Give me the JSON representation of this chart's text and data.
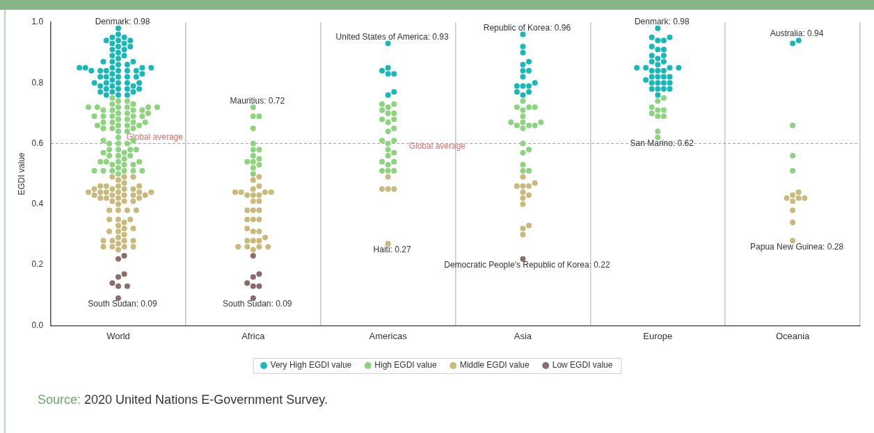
{
  "chart_data": {
    "type": "scatter",
    "ylabel": "EGDI value",
    "categories": [
      "World",
      "Africa",
      "Americas",
      "Asia",
      "Europe",
      "Oceania"
    ],
    "ylim": [
      0,
      1
    ],
    "yticks": [
      {
        "value": 0,
        "label": "0.0"
      },
      0.2,
      0.4,
      0.6,
      0.8,
      {
        "value": 1,
        "label": "1.0"
      }
    ],
    "grid": "x",
    "legend": "bottom",
    "marker": "circle",
    "series": [
      {
        "name": "Very High EGDI value",
        "color": "#17b8b8",
        "x": [
          "Americas",
          "Americas",
          "Americas",
          "Americas",
          "Americas",
          "Americas",
          "Americas",
          "Asia",
          "Asia",
          "Asia",
          "Asia",
          "Asia",
          "Asia",
          "Asia",
          "Asia",
          "Asia",
          "Asia",
          "Asia",
          "Asia",
          "Asia",
          "Asia",
          "Asia",
          "Europe",
          "Europe",
          "Europe",
          "Europe",
          "Europe",
          "Europe",
          "Europe",
          "Europe",
          "Europe",
          "Europe",
          "Europe",
          "Europe",
          "Europe",
          "Europe",
          "Europe",
          "Europe",
          "Europe",
          "Europe",
          "Europe",
          "Europe",
          "Europe",
          "Europe",
          "Europe",
          "Europe",
          "Europe",
          "Europe",
          "Europe",
          "Europe",
          "Europe",
          "Europe",
          "Europe",
          "Europe",
          "Europe",
          "Europe",
          "Europe",
          "Oceania",
          "Oceania",
          "World",
          "World",
          "World",
          "World",
          "World",
          "World",
          "World",
          "World",
          "World",
          "World",
          "World",
          "World",
          "World",
          "World",
          "World",
          "World",
          "World",
          "World",
          "World",
          "World",
          "World",
          "World",
          "World",
          "World",
          "World",
          "World",
          "World",
          "World",
          "World",
          "World",
          "World",
          "World",
          "World",
          "World",
          "World",
          "World",
          "World",
          "World",
          "World",
          "World",
          "World",
          "World",
          "World",
          "World",
          "World",
          "World",
          "World",
          "World",
          "World",
          "World",
          "World",
          "World",
          "World",
          "World",
          "World",
          "World",
          "World",
          "World",
          "World"
        ],
        "values": [
          0.93,
          0.85,
          0.84,
          0.83,
          0.83,
          0.77,
          0.76,
          0.96,
          0.92,
          0.9,
          0.87,
          0.86,
          0.84,
          0.84,
          0.82,
          0.8,
          0.79,
          0.79,
          0.79,
          0.77,
          0.77,
          0.76,
          0.98,
          0.95,
          0.95,
          0.94,
          0.94,
          0.92,
          0.91,
          0.91,
          0.89,
          0.89,
          0.88,
          0.87,
          0.87,
          0.86,
          0.85,
          0.85,
          0.85,
          0.85,
          0.84,
          0.84,
          0.84,
          0.82,
          0.82,
          0.82,
          0.82,
          0.81,
          0.8,
          0.8,
          0.8,
          0.8,
          0.78,
          0.78,
          0.78,
          0.78,
          0.76,
          0.94,
          0.93,
          0.93,
          0.85,
          0.84,
          0.83,
          0.83,
          0.77,
          0.76,
          0.96,
          0.92,
          0.9,
          0.87,
          0.86,
          0.84,
          0.84,
          0.82,
          0.8,
          0.79,
          0.79,
          0.79,
          0.77,
          0.77,
          0.76,
          0.98,
          0.95,
          0.95,
          0.94,
          0.94,
          0.92,
          0.91,
          0.91,
          0.89,
          0.89,
          0.88,
          0.87,
          0.87,
          0.86,
          0.85,
          0.85,
          0.85,
          0.85,
          0.84,
          0.84,
          0.84,
          0.82,
          0.82,
          0.82,
          0.82,
          0.81,
          0.8,
          0.8,
          0.8,
          0.8,
          0.78,
          0.78,
          0.78,
          0.78,
          0.76,
          0.94,
          0.93
        ]
      },
      {
        "name": "High EGDI value",
        "color": "#8cd47e",
        "x": [
          "Africa",
          "Africa",
          "Africa",
          "Africa",
          "Africa",
          "Africa",
          "Africa",
          "Africa",
          "Africa",
          "Africa",
          "Africa",
          "Africa",
          "Africa",
          "Africa",
          "Americas",
          "Americas",
          "Americas",
          "Americas",
          "Americas",
          "Americas",
          "Americas",
          "Americas",
          "Americas",
          "Americas",
          "Americas",
          "Americas",
          "Americas",
          "Americas",
          "Americas",
          "Americas",
          "Americas",
          "Americas",
          "Americas",
          "Americas",
          "Americas",
          "Americas",
          "Americas",
          "Asia",
          "Asia",
          "Asia",
          "Asia",
          "Asia",
          "Asia",
          "Asia",
          "Asia",
          "Asia",
          "Asia",
          "Asia",
          "Asia",
          "Asia",
          "Asia",
          "Asia",
          "Asia",
          "Asia",
          "Asia",
          "Asia",
          "Europe",
          "Europe",
          "Europe",
          "Europe",
          "Europe",
          "Europe",
          "Europe",
          "Europe",
          "Europe",
          "Europe",
          "Oceania",
          "Oceania",
          "Oceania",
          "World",
          "World",
          "World",
          "World",
          "World",
          "World",
          "World",
          "World",
          "World",
          "World",
          "World",
          "World",
          "World",
          "World",
          "World",
          "World",
          "World",
          "World",
          "World",
          "World",
          "World",
          "World",
          "World",
          "World",
          "World",
          "World",
          "World",
          "World",
          "World",
          "World",
          "World",
          "World",
          "World",
          "World",
          "World",
          "World",
          "World",
          "World",
          "World",
          "World",
          "World",
          "World",
          "World",
          "World",
          "World",
          "World",
          "World",
          "World",
          "World",
          "World",
          "World",
          "World",
          "World",
          "World",
          "World",
          "World",
          "World",
          "World",
          "World",
          "World",
          "World",
          "World",
          "World",
          "World",
          "World",
          "World",
          "World",
          "World",
          "World"
        ],
        "values": [
          0.72,
          0.69,
          0.69,
          0.65,
          0.6,
          0.58,
          0.58,
          0.56,
          0.55,
          0.54,
          0.54,
          0.53,
          0.52,
          0.5,
          0.73,
          0.73,
          0.72,
          0.71,
          0.7,
          0.7,
          0.68,
          0.68,
          0.67,
          0.65,
          0.64,
          0.61,
          0.61,
          0.6,
          0.58,
          0.57,
          0.56,
          0.54,
          0.54,
          0.53,
          0.51,
          0.51,
          0.51,
          0.74,
          0.72,
          0.72,
          0.72,
          0.71,
          0.69,
          0.67,
          0.67,
          0.67,
          0.66,
          0.66,
          0.66,
          0.65,
          0.6,
          0.58,
          0.57,
          0.53,
          0.51,
          0.51,
          0.75,
          0.74,
          0.72,
          0.71,
          0.71,
          0.7,
          0.69,
          0.69,
          0.64,
          0.62,
          0.66,
          0.56,
          0.51,
          0.72,
          0.69,
          0.69,
          0.65,
          0.6,
          0.58,
          0.58,
          0.56,
          0.55,
          0.54,
          0.54,
          0.53,
          0.52,
          0.5,
          0.73,
          0.73,
          0.72,
          0.71,
          0.7,
          0.7,
          0.68,
          0.68,
          0.67,
          0.65,
          0.64,
          0.61,
          0.61,
          0.6,
          0.58,
          0.57,
          0.56,
          0.54,
          0.54,
          0.53,
          0.51,
          0.51,
          0.51,
          0.74,
          0.72,
          0.72,
          0.72,
          0.71,
          0.69,
          0.67,
          0.67,
          0.67,
          0.66,
          0.66,
          0.66,
          0.65,
          0.6,
          0.58,
          0.57,
          0.53,
          0.51,
          0.51,
          0.75,
          0.74,
          0.72,
          0.71,
          0.71,
          0.7,
          0.69,
          0.69,
          0.64,
          0.62,
          0.66,
          0.56,
          0.51
        ]
      },
      {
        "name": "Middle EGDI value",
        "color": "#c9ba7c",
        "x": [
          "Africa",
          "Africa",
          "Africa",
          "Africa",
          "Africa",
          "Africa",
          "Africa",
          "Africa",
          "Africa",
          "Africa",
          "Africa",
          "Africa",
          "Africa",
          "Africa",
          "Africa",
          "Africa",
          "Africa",
          "Africa",
          "Africa",
          "Africa",
          "Africa",
          "Africa",
          "Africa",
          "Africa",
          "Africa",
          "Africa",
          "Africa",
          "Africa",
          "Africa",
          "Africa",
          "Africa",
          "Americas",
          "Americas",
          "Americas",
          "Americas",
          "Americas",
          "Asia",
          "Asia",
          "Asia",
          "Asia",
          "Asia",
          "Asia",
          "Asia",
          "Asia",
          "Asia",
          "Asia",
          "Asia",
          "Asia",
          "Oceania",
          "Oceania",
          "Oceania",
          "Oceania",
          "Oceania",
          "Oceania",
          "Oceania",
          "Oceania",
          "Oceania",
          "World",
          "World",
          "World",
          "World",
          "World",
          "World",
          "World",
          "World",
          "World",
          "World",
          "World",
          "World",
          "World",
          "World",
          "World",
          "World",
          "World",
          "World",
          "World",
          "World",
          "World",
          "World",
          "World",
          "World",
          "World",
          "World",
          "World",
          "World",
          "World",
          "World",
          "World",
          "World",
          "World",
          "World",
          "World",
          "World",
          "World",
          "World",
          "World",
          "World",
          "World",
          "World",
          "World",
          "World",
          "World",
          "World",
          "World",
          "World",
          "World",
          "World",
          "World",
          "World",
          "World",
          "World",
          "World",
          "World",
          "World"
        ],
        "values": [
          0.49,
          0.48,
          0.46,
          0.45,
          0.44,
          0.44,
          0.44,
          0.43,
          0.43,
          0.43,
          0.44,
          0.41,
          0.41,
          0.38,
          0.38,
          0.38,
          0.35,
          0.35,
          0.35,
          0.32,
          0.31,
          0.31,
          0.29,
          0.28,
          0.28,
          0.28,
          0.26,
          0.26,
          0.26,
          0.26,
          0.25,
          0.49,
          0.45,
          0.45,
          0.45,
          0.27,
          0.49,
          0.47,
          0.46,
          0.46,
          0.46,
          0.44,
          0.43,
          0.42,
          0.4,
          0.33,
          0.32,
          0.3,
          0.44,
          0.43,
          0.42,
          0.42,
          0.42,
          0.41,
          0.38,
          0.34,
          0.28,
          0.49,
          0.48,
          0.46,
          0.45,
          0.44,
          0.44,
          0.44,
          0.43,
          0.43,
          0.43,
          0.44,
          0.41,
          0.41,
          0.38,
          0.38,
          0.38,
          0.35,
          0.35,
          0.35,
          0.32,
          0.31,
          0.31,
          0.29,
          0.28,
          0.28,
          0.28,
          0.26,
          0.26,
          0.26,
          0.26,
          0.25,
          0.49,
          0.45,
          0.45,
          0.45,
          0.27,
          0.49,
          0.47,
          0.46,
          0.46,
          0.46,
          0.44,
          0.43,
          0.42,
          0.4,
          0.33,
          0.32,
          0.3,
          0.44,
          0.43,
          0.42,
          0.42,
          0.42,
          0.41,
          0.38,
          0.34,
          0.28
        ]
      },
      {
        "name": "Low EGDI value",
        "color": "#8c6b6b",
        "x": [
          "Africa",
          "Africa",
          "Africa",
          "Africa",
          "Africa",
          "Africa",
          "Africa",
          "Asia",
          "World",
          "World",
          "World",
          "World",
          "World",
          "World",
          "World",
          "World"
        ],
        "values": [
          0.23,
          0.17,
          0.16,
          0.14,
          0.13,
          0.13,
          0.09,
          0.22,
          0.23,
          0.17,
          0.16,
          0.14,
          0.13,
          0.13,
          0.09,
          0.22
        ]
      }
    ],
    "ref_lines": [
      {
        "axis": "y",
        "value": 0.6,
        "label": "Global average",
        "color": "#a0a0a0",
        "line_style": "dashed"
      }
    ],
    "annotations": [
      {
        "text": "Denmark: 0.98",
        "x": "World",
        "y": 0.98
      },
      {
        "text": "South Sudan: 0.09",
        "x": "World",
        "y": 0.09
      },
      {
        "text": "Mauritius: 0.72",
        "x": "Africa",
        "y": 0.72
      },
      {
        "text": "South Sudan: 0.09",
        "x": "Africa",
        "y": 0.09
      },
      {
        "text": "United States of America: 0.93",
        "x": "Americas",
        "y": 0.93
      },
      {
        "text": "Haiti: 0.27",
        "x": "Americas",
        "y": 0.27
      },
      {
        "text": "Republic of Korea: 0.96",
        "x": "Asia",
        "y": 0.96
      },
      {
        "text": "Democratic People's Republic of Korea: 0.22",
        "x": "Asia",
        "y": 0.22
      },
      {
        "text": "Denmark: 0.98",
        "x": "Europe",
        "y": 0.98
      },
      {
        "text": "San Marino: 0.62",
        "x": "Europe",
        "y": 0.62
      },
      {
        "text": "Australia: 0.94",
        "x": "Oceania",
        "y": 0.94
      },
      {
        "text": "Papua New Guinea: 0.28",
        "x": "Oceania",
        "y": 0.28
      },
      "Source: 2020 United Nations E-Government Survey."
    ]
  }
}
